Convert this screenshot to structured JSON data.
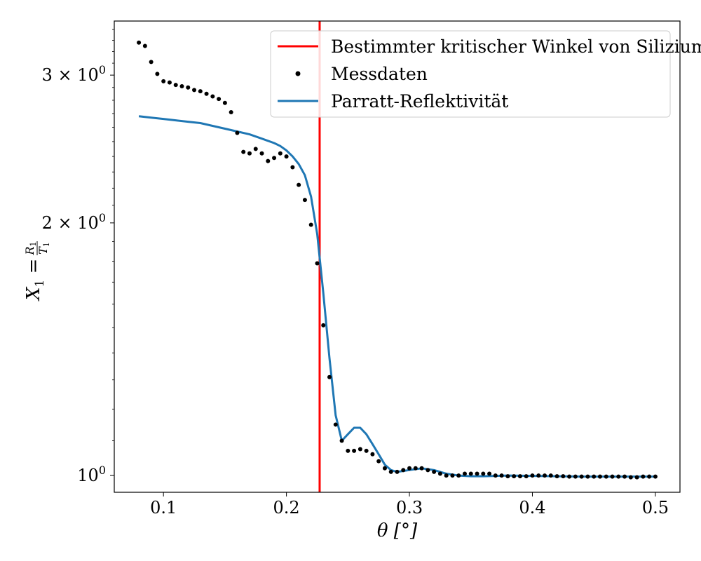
{
  "chart_data": {
    "type": "line",
    "xlabel": "θ [°]",
    "ylabel": {
      "symbol": "X",
      "sub": "1",
      "eq": "=",
      "num_symbol": "R",
      "num_sub": "1",
      "den_symbol": "T",
      "den_sub": "1"
    },
    "xlim": [
      0.06,
      0.52
    ],
    "ylim": [
      0.955,
      3.48
    ],
    "y_scale": "log",
    "x_ticks": [
      {
        "value": 0.1,
        "label": "0.1"
      },
      {
        "value": 0.2,
        "label": "0.2"
      },
      {
        "value": 0.3,
        "label": "0.3"
      },
      {
        "value": 0.4,
        "label": "0.4"
      },
      {
        "value": 0.5,
        "label": "0.5"
      }
    ],
    "y_ticks": [
      {
        "value": 1,
        "mantissa": "",
        "base": "10",
        "exp": "0"
      },
      {
        "value": 2,
        "mantissa": "2 × ",
        "base": "10",
        "exp": "0"
      },
      {
        "value": 3,
        "mantissa": "3 × ",
        "base": "10",
        "exp": "0"
      }
    ],
    "grid": false,
    "legend_position": "top-right",
    "vline": {
      "name": "Bestimmter kritischer Winkel von Silizium",
      "x": 0.227,
      "color": "#ff0000"
    },
    "series": [
      {
        "name": "Messdaten",
        "kind": "scatter",
        "color": "#000000",
        "x": [
          0.08,
          0.085,
          0.09,
          0.095,
          0.1,
          0.105,
          0.11,
          0.115,
          0.12,
          0.125,
          0.13,
          0.135,
          0.14,
          0.145,
          0.15,
          0.155,
          0.16,
          0.165,
          0.17,
          0.175,
          0.18,
          0.185,
          0.19,
          0.195,
          0.2,
          0.205,
          0.21,
          0.215,
          0.22,
          0.225,
          0.23,
          0.235,
          0.24,
          0.245,
          0.25,
          0.255,
          0.26,
          0.265,
          0.27,
          0.275,
          0.28,
          0.285,
          0.29,
          0.295,
          0.3,
          0.305,
          0.31,
          0.315,
          0.32,
          0.325,
          0.33,
          0.335,
          0.34,
          0.345,
          0.35,
          0.355,
          0.36,
          0.365,
          0.37,
          0.375,
          0.38,
          0.385,
          0.39,
          0.395,
          0.4,
          0.405,
          0.41,
          0.415,
          0.42,
          0.425,
          0.43,
          0.435,
          0.44,
          0.445,
          0.45,
          0.455,
          0.46,
          0.465,
          0.47,
          0.475,
          0.48,
          0.485,
          0.49,
          0.495,
          0.5
        ],
        "y": [
          3.28,
          3.25,
          3.11,
          3.01,
          2.95,
          2.94,
          2.92,
          2.91,
          2.9,
          2.88,
          2.87,
          2.85,
          2.83,
          2.81,
          2.78,
          2.71,
          2.56,
          2.43,
          2.42,
          2.45,
          2.42,
          2.37,
          2.39,
          2.42,
          2.4,
          2.33,
          2.22,
          2.13,
          1.99,
          1.79,
          1.51,
          1.31,
          1.15,
          1.1,
          1.07,
          1.07,
          1.075,
          1.07,
          1.06,
          1.04,
          1.02,
          1.01,
          1.01,
          1.015,
          1.02,
          1.02,
          1.02,
          1.015,
          1.01,
          1.005,
          1.0,
          1.0,
          1.0,
          1.005,
          1.005,
          1.005,
          1.005,
          1.005,
          1.0,
          1.0,
          0.998,
          0.998,
          0.998,
          0.998,
          1.0,
          1.0,
          1.0,
          1.0,
          0.998,
          0.998,
          0.997,
          0.997,
          0.997,
          0.997,
          0.997,
          0.997,
          0.997,
          0.997,
          0.997,
          0.997,
          0.995,
          0.995,
          0.997,
          0.997,
          0.997
        ]
      },
      {
        "name": "Parratt-Reflektivität",
        "kind": "line",
        "color": "#1f77b4",
        "x": [
          0.08,
          0.09,
          0.1,
          0.11,
          0.12,
          0.13,
          0.14,
          0.15,
          0.16,
          0.17,
          0.18,
          0.19,
          0.195,
          0.2,
          0.205,
          0.21,
          0.215,
          0.22,
          0.225,
          0.23,
          0.235,
          0.24,
          0.245,
          0.25,
          0.255,
          0.26,
          0.265,
          0.27,
          0.275,
          0.28,
          0.285,
          0.29,
          0.3,
          0.31,
          0.32,
          0.33,
          0.34,
          0.35,
          0.36,
          0.38,
          0.4,
          0.42,
          0.44,
          0.46,
          0.48,
          0.5
        ],
        "y": [
          2.68,
          2.67,
          2.66,
          2.65,
          2.64,
          2.63,
          2.61,
          2.59,
          2.57,
          2.55,
          2.52,
          2.49,
          2.47,
          2.44,
          2.4,
          2.35,
          2.28,
          2.15,
          1.94,
          1.65,
          1.38,
          1.18,
          1.1,
          1.12,
          1.14,
          1.14,
          1.12,
          1.09,
          1.06,
          1.03,
          1.015,
          1.01,
          1.015,
          1.02,
          1.015,
          1.005,
          1.0,
          0.998,
          0.998,
          1.0,
          0.999,
          0.998,
          0.997,
          0.997,
          0.997,
          0.997
        ]
      }
    ]
  }
}
